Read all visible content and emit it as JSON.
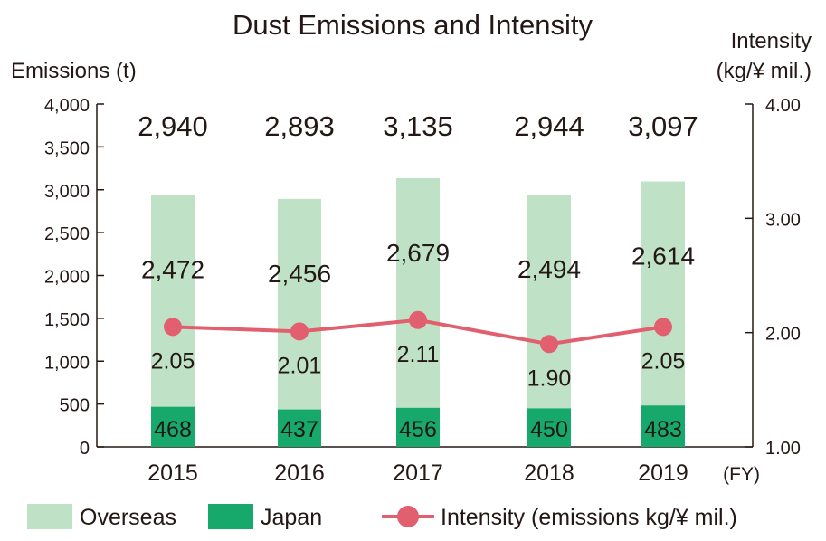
{
  "chart_data": {
    "type": "bar",
    "title": "Dust Emissions and Intensity",
    "ylabel_left": "Emissions (t)",
    "ylabel_right_line1": "Intensity",
    "ylabel_right_line2": "(kg/¥ mil.)",
    "xunit": "(FY)",
    "categories": [
      "2015",
      "2016",
      "2017",
      "2018",
      "2019"
    ],
    "left_axis": {
      "min": 0,
      "max": 4000,
      "ticks": [
        0,
        500,
        1000,
        1500,
        2000,
        2500,
        3000,
        3500,
        4000
      ],
      "tick_labels": [
        "0",
        "500",
        "1,000",
        "1,500",
        "2,000",
        "2,500",
        "3,000",
        "3,500",
        "4,000"
      ]
    },
    "right_axis": {
      "min": 1.0,
      "max": 4.0,
      "ticks": [
        1.0,
        2.0,
        3.0,
        4.0
      ],
      "tick_labels": [
        "1.00",
        "2.00",
        "3.00",
        "4.00"
      ]
    },
    "stacked": true,
    "series": [
      {
        "name": "Japan",
        "type": "bar",
        "color": "#17a86b",
        "values": [
          468,
          437,
          456,
          450,
          483
        ],
        "labels": [
          "468",
          "437",
          "456",
          "450",
          "483"
        ]
      },
      {
        "name": "Overseas",
        "type": "bar",
        "color": "#bfe2c6",
        "values": [
          2472,
          2456,
          2679,
          2494,
          2614
        ],
        "labels": [
          "2,472",
          "2,456",
          "2,679",
          "2,494",
          "2,614"
        ]
      },
      {
        "name": "Intensity (emissions kg/¥ mil.)",
        "type": "line",
        "axis": "right",
        "color": "#e25f6f",
        "values": [
          2.05,
          2.01,
          2.11,
          1.9,
          2.05
        ],
        "labels": [
          "2.05",
          "2.01",
          "2.11",
          "1.90",
          "2.05"
        ]
      }
    ],
    "totals": [
      2940,
      2893,
      3135,
      2944,
      3097
    ],
    "total_labels": [
      "2,940",
      "2,893",
      "3,135",
      "2,944",
      "3,097"
    ],
    "legend_placement": "bottom",
    "legend": [
      {
        "label": "Overseas",
        "color": "#bfe2c6",
        "kind": "box"
      },
      {
        "label": "Japan",
        "color": "#17a86b",
        "kind": "box"
      },
      {
        "label": "Intensity (emissions kg/¥ mil.)",
        "color": "#e25f6f",
        "kind": "line-marker"
      }
    ],
    "grid": false
  }
}
